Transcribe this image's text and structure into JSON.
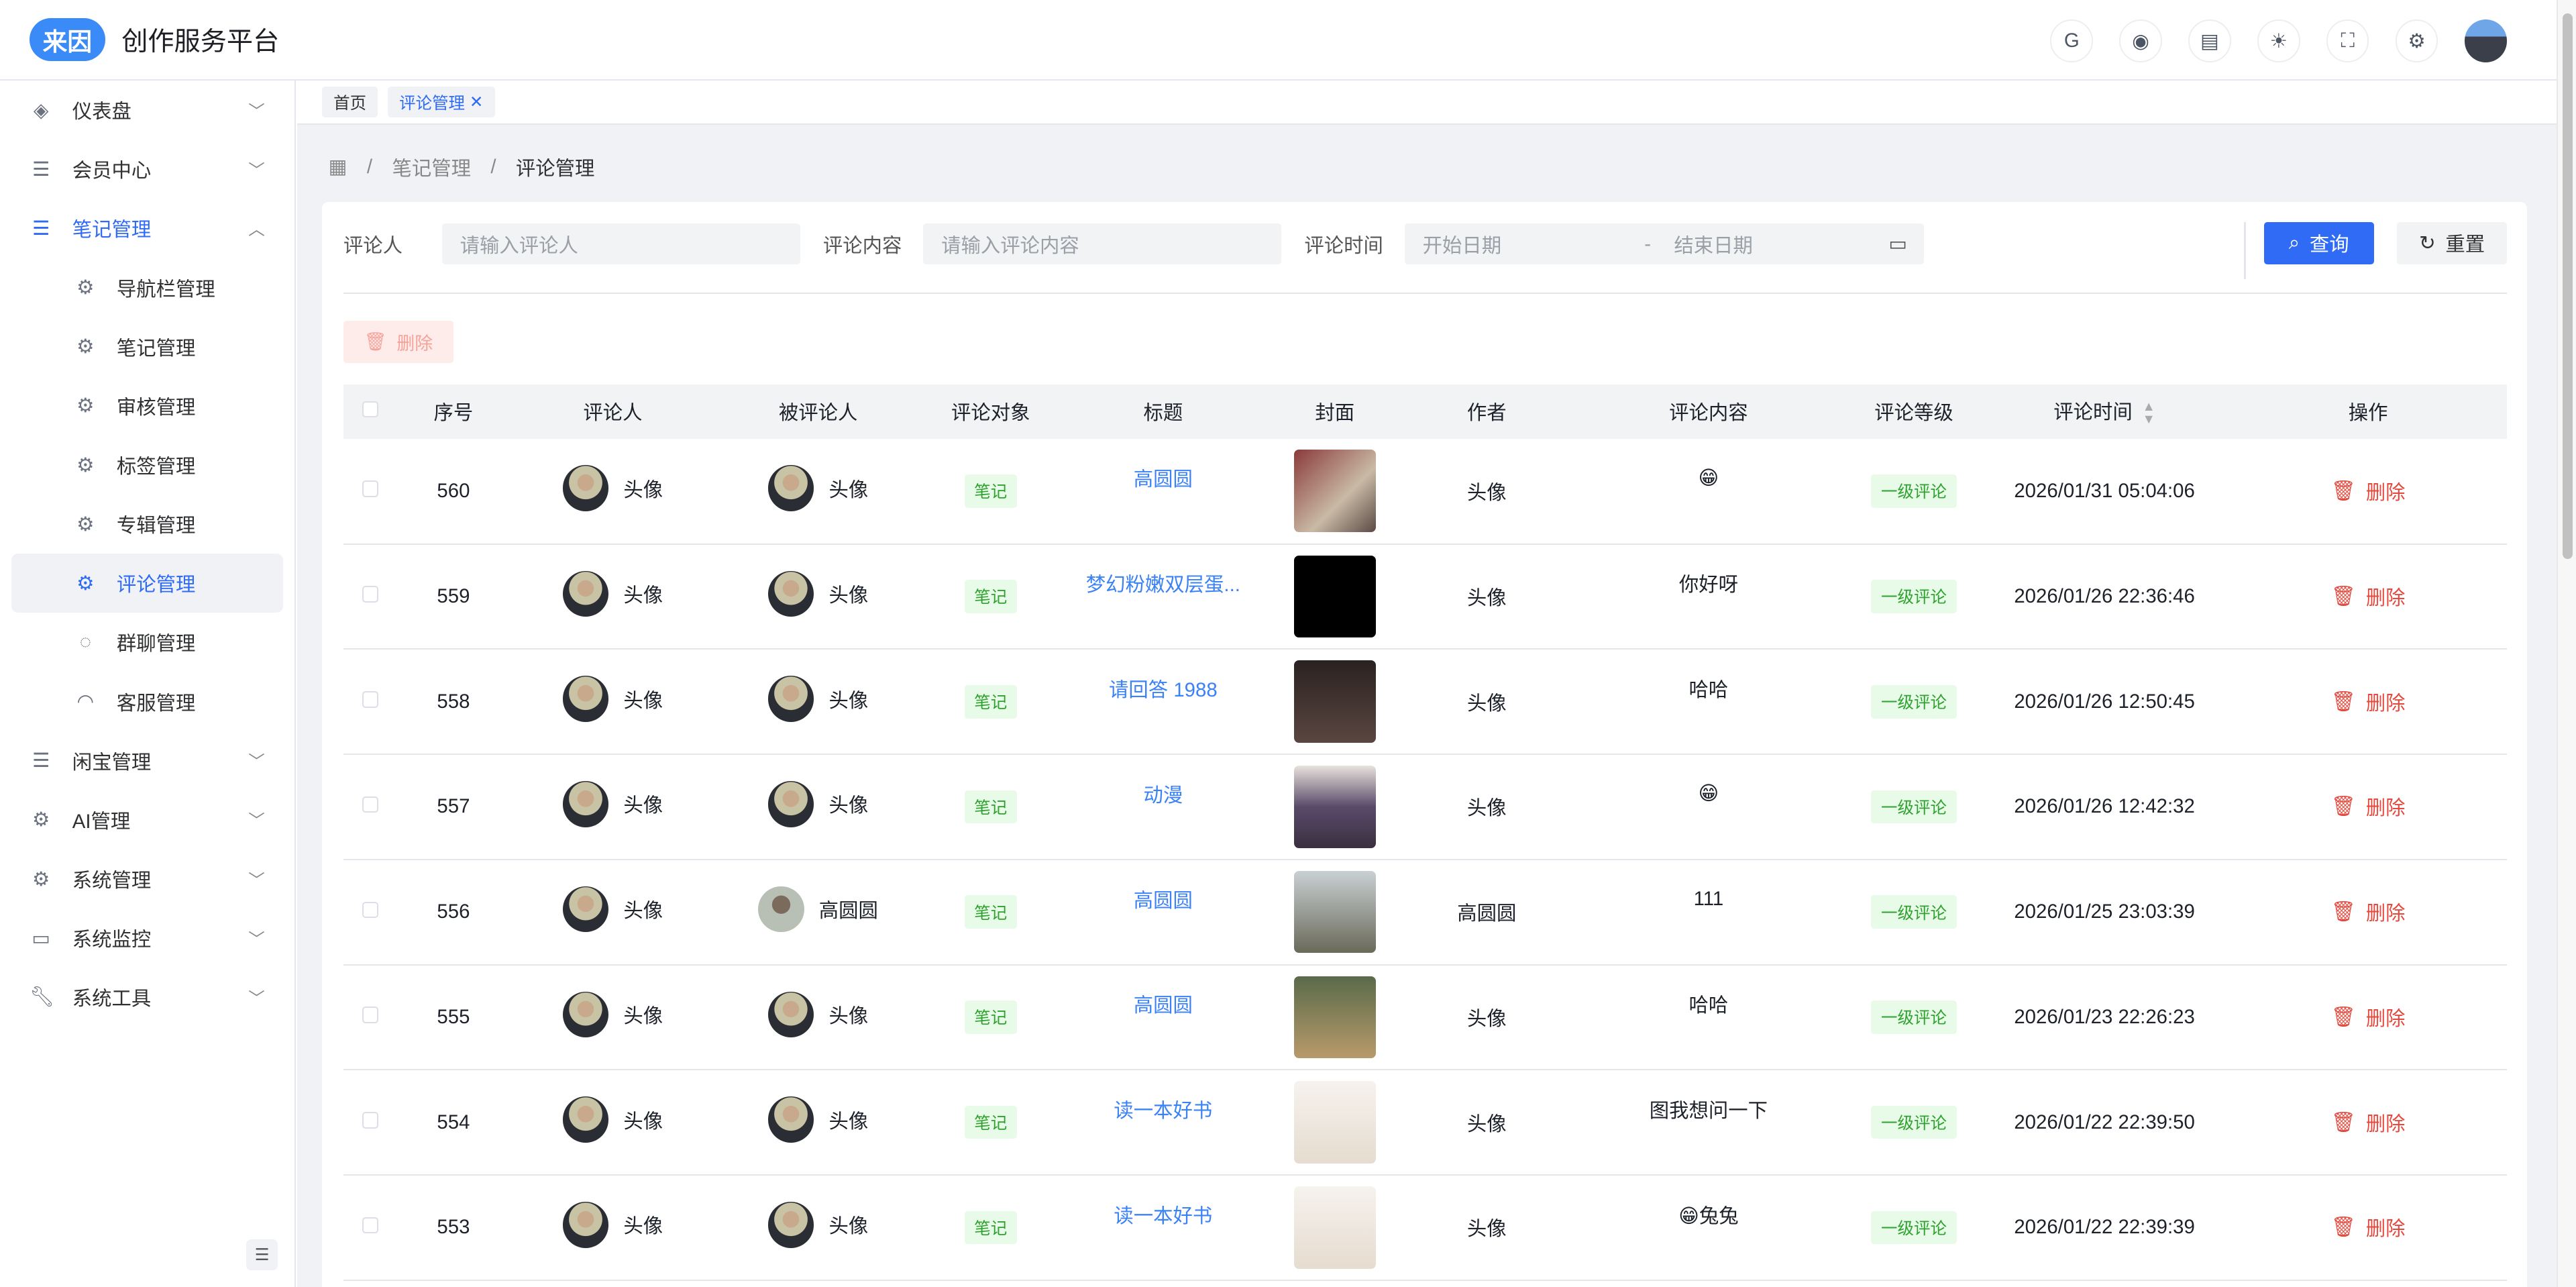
{
  "header": {
    "logo": "来因",
    "title": "创作服务平台",
    "icons": [
      "gitee-icon",
      "github-icon",
      "document-icon",
      "theme-sun-icon",
      "fullscreen-icon",
      "settings-icon"
    ]
  },
  "sidebar": {
    "items": [
      {
        "label": "仪表盘",
        "icon": "layers-icon",
        "expanded": false
      },
      {
        "label": "会员中心",
        "icon": "list-icon",
        "expanded": false
      },
      {
        "label": "笔记管理",
        "icon": "list-icon",
        "expanded": true,
        "children": [
          {
            "label": "导航栏管理",
            "icon": "gear-icon"
          },
          {
            "label": "笔记管理",
            "icon": "gear-icon"
          },
          {
            "label": "审核管理",
            "icon": "gear-icon"
          },
          {
            "label": "标签管理",
            "icon": "gear-icon"
          },
          {
            "label": "专辑管理",
            "icon": "gear-icon"
          },
          {
            "label": "评论管理",
            "icon": "gear-icon",
            "active": true
          },
          {
            "label": "群聊管理",
            "icon": "chat-icon"
          },
          {
            "label": "客服管理",
            "icon": "headset-icon"
          }
        ]
      },
      {
        "label": "闲宝管理",
        "icon": "list-icon",
        "expanded": false
      },
      {
        "label": "AI管理",
        "icon": "gear-icon",
        "expanded": false
      },
      {
        "label": "系统管理",
        "icon": "gear-icon",
        "expanded": false
      },
      {
        "label": "系统监控",
        "icon": "monitor-icon",
        "expanded": false
      },
      {
        "label": "系统工具",
        "icon": "wrench-icon",
        "expanded": false
      }
    ]
  },
  "tabs": [
    {
      "label": "首页"
    },
    {
      "label": "评论管理",
      "active": true
    }
  ],
  "breadcrumb": [
    "笔记管理",
    "评论管理"
  ],
  "search": {
    "commenter_label": "评论人",
    "commenter_placeholder": "请输入评论人",
    "content_label": "评论内容",
    "content_placeholder": "请输入评论内容",
    "time_label": "评论时间",
    "start_placeholder": "开始日期",
    "sep": "-",
    "end_placeholder": "结束日期",
    "query": "查询",
    "reset": "重置"
  },
  "toolbar": {
    "delete": "删除"
  },
  "table": {
    "columns": [
      "序号",
      "评论人",
      "被评论人",
      "评论对象",
      "标题",
      "封面",
      "作者",
      "评论内容",
      "评论等级",
      "评论时间",
      "操作"
    ],
    "rows": [
      {
        "id": "560",
        "commenter": "头像",
        "target_user": "头像",
        "type": "笔记",
        "title": "高圆圆",
        "author": "头像",
        "content": "😁",
        "level": "一级评论",
        "time": "2026/01/31 05:04:06",
        "action": "删除"
      },
      {
        "id": "559",
        "commenter": "头像",
        "target_user": "头像",
        "type": "笔记",
        "title": "梦幻粉嫩双层蛋...",
        "author": "头像",
        "content": "你好呀",
        "level": "一级评论",
        "time": "2026/01/26 22:36:46",
        "action": "删除"
      },
      {
        "id": "558",
        "commenter": "头像",
        "target_user": "头像",
        "type": "笔记",
        "title": "请回答 1988",
        "author": "头像",
        "content": "哈哈",
        "level": "一级评论",
        "time": "2026/01/26 12:50:45",
        "action": "删除"
      },
      {
        "id": "557",
        "commenter": "头像",
        "target_user": "头像",
        "type": "笔记",
        "title": "动漫",
        "author": "头像",
        "content": "😁",
        "level": "一级评论",
        "time": "2026/01/26 12:42:32",
        "action": "删除"
      },
      {
        "id": "556",
        "commenter": "头像",
        "target_user": "高圆圆",
        "type": "笔记",
        "title": "高圆圆",
        "author": "高圆圆",
        "content": "111",
        "level": "一级评论",
        "time": "2026/01/25 23:03:39",
        "action": "删除"
      },
      {
        "id": "555",
        "commenter": "头像",
        "target_user": "头像",
        "type": "笔记",
        "title": "高圆圆",
        "author": "头像",
        "content": "哈哈",
        "level": "一级评论",
        "time": "2026/01/23 22:26:23",
        "action": "删除"
      },
      {
        "id": "554",
        "commenter": "头像",
        "target_user": "头像",
        "type": "笔记",
        "title": "读一本好书",
        "author": "头像",
        "content": "图我想问一下",
        "level": "一级评论",
        "time": "2026/01/22 22:39:50",
        "action": "删除"
      },
      {
        "id": "553",
        "commenter": "头像",
        "target_user": "头像",
        "type": "笔记",
        "title": "读一本好书",
        "author": "头像",
        "content": "😁兔兔",
        "level": "一级评论",
        "time": "2026/01/22 22:39:39",
        "action": "删除"
      }
    ]
  },
  "colors": {
    "primary": "#2f6bf5",
    "danger": "#e5483c",
    "success": "#2ea12e"
  }
}
